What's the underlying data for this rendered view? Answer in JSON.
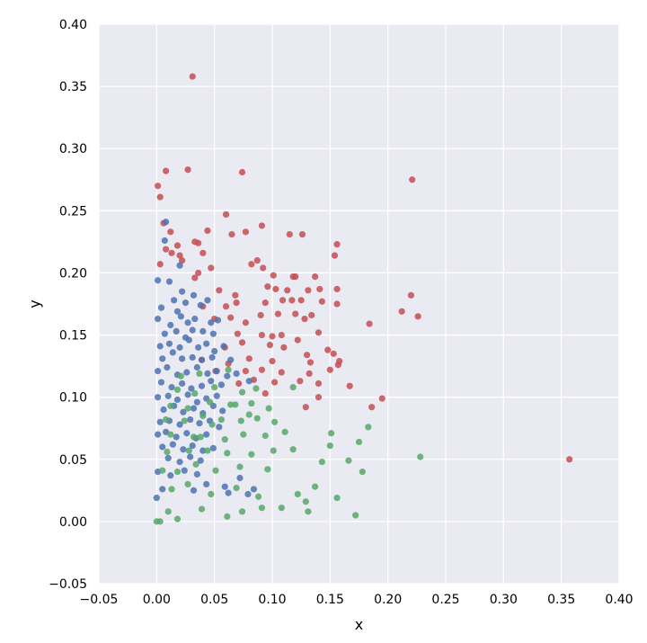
{
  "chart_data": {
    "type": "scatter",
    "title": "",
    "xlabel": "x",
    "ylabel": "y",
    "xlim": [
      -0.05,
      0.4
    ],
    "ylim": [
      -0.05,
      0.4
    ],
    "xticks": [
      "−0.05",
      "0.00",
      "0.05",
      "0.10",
      "0.15",
      "0.20",
      "0.25",
      "0.30",
      "0.35",
      "0.40"
    ],
    "yticks": [
      "−0.05",
      "0.00",
      "0.05",
      "0.10",
      "0.15",
      "0.20",
      "0.25",
      "0.30",
      "0.35",
      "0.40"
    ],
    "grid": true,
    "background": "#eaeaf2",
    "grid_color": "#ffffff",
    "series": [
      {
        "color": "#c44e52",
        "points": [
          [
            0.031,
            0.358
          ],
          [
            0.221,
            0.275
          ],
          [
            0.357,
            0.05
          ],
          [
            0.001,
            0.27
          ],
          [
            0.008,
            0.282
          ],
          [
            0.027,
            0.283
          ],
          [
            0.074,
            0.281
          ],
          [
            0.003,
            0.261
          ],
          [
            0.006,
            0.24
          ],
          [
            0.06,
            0.247
          ],
          [
            0.012,
            0.233
          ],
          [
            0.044,
            0.234
          ],
          [
            0.018,
            0.222
          ],
          [
            0.065,
            0.231
          ],
          [
            0.091,
            0.238
          ],
          [
            0.077,
            0.233
          ],
          [
            0.008,
            0.219
          ],
          [
            0.02,
            0.214
          ],
          [
            0.033,
            0.225
          ],
          [
            0.036,
            0.224
          ],
          [
            0.013,
            0.216
          ],
          [
            0.04,
            0.216
          ],
          [
            0.115,
            0.231
          ],
          [
            0.126,
            0.231
          ],
          [
            0.156,
            0.223
          ],
          [
            0.154,
            0.214
          ],
          [
            0.003,
            0.207
          ],
          [
            0.022,
            0.21
          ],
          [
            0.036,
            0.2
          ],
          [
            0.033,
            0.196
          ],
          [
            0.047,
            0.204
          ],
          [
            0.082,
            0.207
          ],
          [
            0.087,
            0.21
          ],
          [
            0.092,
            0.204
          ],
          [
            0.101,
            0.198
          ],
          [
            0.118,
            0.197
          ],
          [
            0.12,
            0.197
          ],
          [
            0.137,
            0.197
          ],
          [
            0.054,
            0.186
          ],
          [
            0.068,
            0.182
          ],
          [
            0.096,
            0.189
          ],
          [
            0.103,
            0.187
          ],
          [
            0.113,
            0.186
          ],
          [
            0.131,
            0.186
          ],
          [
            0.141,
            0.187
          ],
          [
            0.156,
            0.187
          ],
          [
            0.22,
            0.182
          ],
          [
            0.04,
            0.173
          ],
          [
            0.06,
            0.173
          ],
          [
            0.069,
            0.176
          ],
          [
            0.094,
            0.176
          ],
          [
            0.109,
            0.178
          ],
          [
            0.117,
            0.178
          ],
          [
            0.125,
            0.178
          ],
          [
            0.143,
            0.177
          ],
          [
            0.156,
            0.175
          ],
          [
            0.212,
            0.169
          ],
          [
            0.05,
            0.163
          ],
          [
            0.064,
            0.164
          ],
          [
            0.077,
            0.16
          ],
          [
            0.09,
            0.166
          ],
          [
            0.105,
            0.167
          ],
          [
            0.12,
            0.167
          ],
          [
            0.128,
            0.163
          ],
          [
            0.134,
            0.166
          ],
          [
            0.184,
            0.159
          ],
          [
            0.226,
            0.165
          ],
          [
            0.07,
            0.151
          ],
          [
            0.091,
            0.15
          ],
          [
            0.1,
            0.149
          ],
          [
            0.108,
            0.15
          ],
          [
            0.122,
            0.146
          ],
          [
            0.14,
            0.152
          ],
          [
            0.059,
            0.14
          ],
          [
            0.074,
            0.144
          ],
          [
            0.098,
            0.142
          ],
          [
            0.11,
            0.14
          ],
          [
            0.13,
            0.134
          ],
          [
            0.148,
            0.138
          ],
          [
            0.153,
            0.135
          ],
          [
            0.039,
            0.13
          ],
          [
            0.062,
            0.127
          ],
          [
            0.08,
            0.131
          ],
          [
            0.1,
            0.129
          ],
          [
            0.133,
            0.128
          ],
          [
            0.157,
            0.126
          ],
          [
            0.158,
            0.129
          ],
          [
            0.051,
            0.121
          ],
          [
            0.077,
            0.121
          ],
          [
            0.091,
            0.122
          ],
          [
            0.108,
            0.12
          ],
          [
            0.132,
            0.119
          ],
          [
            0.15,
            0.122
          ],
          [
            0.071,
            0.111
          ],
          [
            0.084,
            0.114
          ],
          [
            0.102,
            0.112
          ],
          [
            0.124,
            0.113
          ],
          [
            0.14,
            0.111
          ],
          [
            0.167,
            0.109
          ],
          [
            0.094,
            0.103
          ],
          [
            0.14,
            0.1
          ],
          [
            0.195,
            0.099
          ],
          [
            0.186,
            0.092
          ],
          [
            0.129,
            0.092
          ]
        ]
      },
      {
        "color": "#4c72b0",
        "points": [
          [
            0.008,
            0.241
          ],
          [
            0.007,
            0.226
          ],
          [
            0.02,
            0.206
          ],
          [
            0.001,
            0.194
          ],
          [
            0.011,
            0.193
          ],
          [
            0.015,
            0.178
          ],
          [
            0.022,
            0.185
          ],
          [
            0.032,
            0.182
          ],
          [
            0.004,
            0.172
          ],
          [
            0.018,
            0.169
          ],
          [
            0.025,
            0.176
          ],
          [
            0.038,
            0.174
          ],
          [
            0.044,
            0.178
          ],
          [
            0.001,
            0.163
          ],
          [
            0.012,
            0.158
          ],
          [
            0.021,
            0.165
          ],
          [
            0.027,
            0.16
          ],
          [
            0.033,
            0.163
          ],
          [
            0.047,
            0.16
          ],
          [
            0.053,
            0.162
          ],
          [
            0.007,
            0.151
          ],
          [
            0.017,
            0.153
          ],
          [
            0.025,
            0.148
          ],
          [
            0.031,
            0.154
          ],
          [
            0.04,
            0.153
          ],
          [
            0.049,
            0.151
          ],
          [
            0.003,
            0.141
          ],
          [
            0.011,
            0.143
          ],
          [
            0.02,
            0.14
          ],
          [
            0.028,
            0.146
          ],
          [
            0.036,
            0.14
          ],
          [
            0.043,
            0.143
          ],
          [
            0.05,
            0.137
          ],
          [
            0.058,
            0.141
          ],
          [
            0.005,
            0.131
          ],
          [
            0.014,
            0.136
          ],
          [
            0.022,
            0.131
          ],
          [
            0.031,
            0.132
          ],
          [
            0.039,
            0.13
          ],
          [
            0.048,
            0.132
          ],
          [
            0.064,
            0.13
          ],
          [
            0.001,
            0.121
          ],
          [
            0.009,
            0.124
          ],
          [
            0.018,
            0.118
          ],
          [
            0.026,
            0.12
          ],
          [
            0.035,
            0.124
          ],
          [
            0.044,
            0.119
          ],
          [
            0.052,
            0.121
          ],
          [
            0.061,
            0.117
          ],
          [
            0.069,
            0.119
          ],
          [
            0.004,
            0.112
          ],
          [
            0.013,
            0.108
          ],
          [
            0.022,
            0.111
          ],
          [
            0.03,
            0.107
          ],
          [
            0.039,
            0.109
          ],
          [
            0.047,
            0.113
          ],
          [
            0.056,
            0.11
          ],
          [
            0.08,
            0.113
          ],
          [
            0.001,
            0.1
          ],
          [
            0.01,
            0.101
          ],
          [
            0.018,
            0.098
          ],
          [
            0.027,
            0.102
          ],
          [
            0.035,
            0.096
          ],
          [
            0.043,
            0.099
          ],
          [
            0.052,
            0.101
          ],
          [
            0.006,
            0.09
          ],
          [
            0.015,
            0.093
          ],
          [
            0.023,
            0.088
          ],
          [
            0.032,
            0.091
          ],
          [
            0.04,
            0.087
          ],
          [
            0.049,
            0.093
          ],
          [
            0.057,
            0.089
          ],
          [
            0.003,
            0.08
          ],
          [
            0.011,
            0.081
          ],
          [
            0.02,
            0.078
          ],
          [
            0.029,
            0.082
          ],
          [
            0.037,
            0.079
          ],
          [
            0.046,
            0.081
          ],
          [
            0.054,
            0.076
          ],
          [
            0.001,
            0.07
          ],
          [
            0.008,
            0.072
          ],
          [
            0.017,
            0.068
          ],
          [
            0.026,
            0.071
          ],
          [
            0.034,
            0.067
          ],
          [
            0.043,
            0.07
          ],
          [
            0.005,
            0.06
          ],
          [
            0.014,
            0.062
          ],
          [
            0.023,
            0.058
          ],
          [
            0.031,
            0.061
          ],
          [
            0.04,
            0.057
          ],
          [
            0.049,
            0.059
          ],
          [
            0.01,
            0.051
          ],
          [
            0.02,
            0.048
          ],
          [
            0.029,
            0.052
          ],
          [
            0.038,
            0.049
          ],
          [
            0.001,
            0.04
          ],
          [
            0.012,
            0.037
          ],
          [
            0.024,
            0.041
          ],
          [
            0.035,
            0.038
          ],
          [
            0.005,
            0.026
          ],
          [
            0.0,
            0.019
          ],
          [
            0.032,
            0.025
          ],
          [
            0.043,
            0.03
          ],
          [
            0.059,
            0.028
          ],
          [
            0.072,
            0.035
          ],
          [
            0.084,
            0.026
          ],
          [
            0.062,
            0.023
          ],
          [
            0.079,
            0.022
          ]
        ]
      },
      {
        "color": "#55a868",
        "points": [
          [
            0.0,
            0.0
          ],
          [
            0.018,
            0.002
          ],
          [
            0.01,
            0.008
          ],
          [
            0.039,
            0.01
          ],
          [
            0.061,
            0.004
          ],
          [
            0.074,
            0.008
          ],
          [
            0.091,
            0.011
          ],
          [
            0.108,
            0.011
          ],
          [
            0.131,
            0.008
          ],
          [
            0.172,
            0.005
          ],
          [
            0.013,
            0.026
          ],
          [
            0.027,
            0.03
          ],
          [
            0.047,
            0.022
          ],
          [
            0.069,
            0.027
          ],
          [
            0.088,
            0.02
          ],
          [
            0.122,
            0.022
          ],
          [
            0.137,
            0.028
          ],
          [
            0.156,
            0.019
          ],
          [
            0.129,
            0.016
          ],
          [
            0.005,
            0.041
          ],
          [
            0.018,
            0.04
          ],
          [
            0.034,
            0.046
          ],
          [
            0.051,
            0.041
          ],
          [
            0.072,
            0.044
          ],
          [
            0.096,
            0.042
          ],
          [
            0.143,
            0.048
          ],
          [
            0.166,
            0.049
          ],
          [
            0.178,
            0.04
          ],
          [
            0.009,
            0.056
          ],
          [
            0.028,
            0.057
          ],
          [
            0.044,
            0.057
          ],
          [
            0.061,
            0.055
          ],
          [
            0.082,
            0.054
          ],
          [
            0.101,
            0.057
          ],
          [
            0.118,
            0.058
          ],
          [
            0.15,
            0.061
          ],
          [
            0.175,
            0.064
          ],
          [
            0.228,
            0.052
          ],
          [
            0.038,
            0.068
          ],
          [
            0.059,
            0.066
          ],
          [
            0.075,
            0.07
          ],
          [
            0.094,
            0.069
          ],
          [
            0.111,
            0.072
          ],
          [
            0.151,
            0.071
          ],
          [
            0.183,
            0.076
          ],
          [
            0.008,
            0.082
          ],
          [
            0.024,
            0.081
          ],
          [
            0.04,
            0.085
          ],
          [
            0.056,
            0.082
          ],
          [
            0.073,
            0.081
          ],
          [
            0.087,
            0.083
          ],
          [
            0.102,
            0.08
          ],
          [
            0.012,
            0.093
          ],
          [
            0.027,
            0.091
          ],
          [
            0.046,
            0.096
          ],
          [
            0.064,
            0.094
          ],
          [
            0.082,
            0.095
          ],
          [
            0.097,
            0.091
          ],
          [
            0.018,
            0.106
          ],
          [
            0.033,
            0.103
          ],
          [
            0.05,
            0.108
          ],
          [
            0.074,
            0.104
          ],
          [
            0.086,
            0.107
          ],
          [
            0.021,
            0.117
          ],
          [
            0.037,
            0.119
          ],
          [
            0.062,
            0.122
          ],
          [
            0.118,
            0.108
          ],
          [
            0.08,
            0.086
          ],
          [
            0.068,
            0.094
          ],
          [
            0.048,
            0.078
          ],
          [
            0.032,
            0.068
          ],
          [
            0.012,
            0.07
          ],
          [
            0.003,
            0.0
          ]
        ]
      }
    ]
  }
}
